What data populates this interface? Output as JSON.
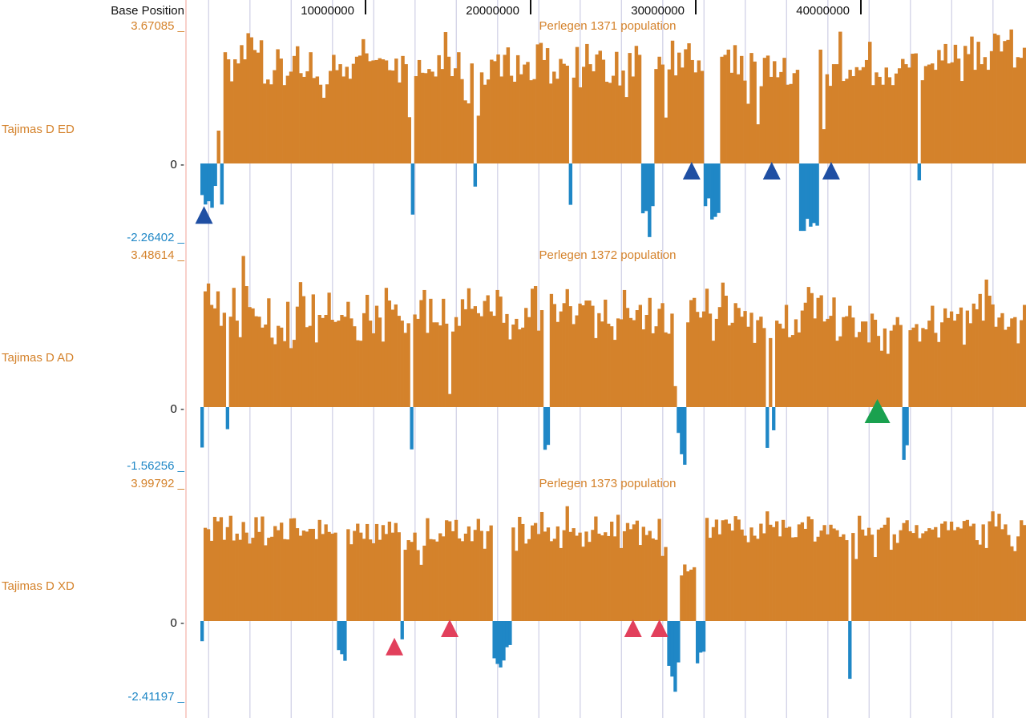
{
  "base_position_label": "Base Position",
  "colors": {
    "positive": "#d4822b",
    "negative": "#1f87c6",
    "gridline": "#d5d5e8",
    "label_orange": "#d4822b",
    "label_blue": "#1f87c6",
    "axis_red": "#f4b0a8",
    "marker_blue": "#1f4fa3",
    "marker_green": "#1aa14f",
    "marker_red": "#e2405c"
  },
  "chart_data": {
    "type": "bar",
    "x_axis": {
      "label": "Base Position",
      "range": [
        0,
        50000000
      ],
      "ticks": [
        10000000,
        20000000,
        30000000,
        40000000
      ],
      "tick_labels": [
        "10000000",
        "20000000",
        "30000000",
        "40000000"
      ]
    },
    "grid": true,
    "tracks": [
      {
        "name": "Tajimas D ED",
        "title": "Perlegen 1371 population",
        "max_label": "3.67085 _",
        "zero_label": "0 -",
        "min_label": "-2.26402 _",
        "ylim": [
          -2.26402,
          3.67085
        ],
        "values": [
          -0.97,
          -1.26,
          -1.16,
          -1.36,
          -0.69,
          0.88,
          -1.26,
          2.98,
          2.79,
          2.2,
          2.79,
          2.68,
          3.17,
          2.79,
          3.49,
          3.38,
          3.04,
          2.97,
          3.3,
          2.14,
          2.25,
          2.12,
          2.5,
          3.06,
          2.81,
          2.1,
          2.35,
          2.46,
          2.88,
          3.14,
          2.42,
          2.32,
          2.47,
          2.98,
          2.29,
          2.33,
          2.11,
          1.76,
          2.12,
          2.48,
          2.91,
          2.5,
          2.66,
          2.33,
          2.59,
          2.27,
          2.67,
          2.86,
          2.89,
          3.33,
          2.95,
          2.74,
          2.76,
          2.77,
          2.82,
          2.79,
          2.76,
          2.5,
          2.49,
          2.81,
          2.17,
          2.88,
          2.66,
          1.24,
          -1.57,
          2.34,
          2.77,
          2.43,
          2.42,
          2.53,
          2.46,
          2.33,
          2.9,
          2.53,
          3.52,
          2.86,
          2.34,
          2.55,
          2.98,
          2.26,
          1.69,
          1.61,
          2.68,
          -0.71,
          1.28,
          2.44,
          2.11,
          2.25,
          2.78,
          2.74,
          2.92,
          2.33,
          2.91,
          3.11,
          2.35,
          2.19,
          2.9,
          2.39,
          2.65,
          2.72,
          2.23,
          2.26,
          3.19,
          3.23,
          2.77,
          3.09,
          2.14,
          2.46,
          2.27,
          2.8,
          2.67,
          2.62,
          -1.27,
          2.3,
          3.12,
          2.04,
          2.59,
          3.2,
          2.66,
          2.47,
          2.92,
          3.02,
          2.78,
          2.19,
          2.16,
          2.35,
          2.99,
          2.09,
          2.49,
          1.78,
          2.96,
          2.33,
          3.15,
          2.91,
          -1.53,
          -1.46,
          -2.26,
          -1.31,
          2.53,
          2.86,
          2.65,
          1.23,
          2.52,
          3.29,
          2.36,
          2.97,
          2.57,
          3.06,
          3.22,
          2.77,
          2.44,
          2.76,
          2.48,
          -1.31,
          -1.07,
          -1.72,
          -1.64,
          -1.52,
          2.86,
          2.91,
          3.05,
          2.43,
          3.17,
          2.39,
          2.88,
          2.22,
          1.6,
          2.96,
          2.73,
          1.05,
          2.07,
          2.83,
          2.89,
          2.32,
          2.74,
          2.31,
          2.45,
          2.83,
          2.11,
          2.13,
          2.42,
          2.51,
          -2.07,
          -2.07,
          -1.7,
          -1.94,
          -1.83,
          -1.91,
          3.05,
          0.92,
          2.39,
          2.08,
          2.66,
          2.66,
          3.53,
          2.21,
          2.27,
          2.51,
          2.34,
          2.58,
          2.5,
          2.58,
          2.77,
          3.26,
          2.1,
          2.44,
          2.32,
          2.11,
          2.57,
          2.31,
          2.1,
          2.41,
          2.55,
          2.8,
          2.66,
          2.57,
          2.94,
          2.95,
          -0.52,
          2.23,
          2.61,
          2.65,
          2.68,
          2.51,
          3.04,
          2.76,
          3.2,
          2.68,
          2.71,
          3.18,
          2.81,
          2.21,
          3.15,
          2.93,
          3.4,
          2.51,
          3.26,
          2.66,
          2.85,
          2.51,
          3.01,
          3.48,
          3.44,
          3.0,
          3.28,
          3.31,
          3.59,
          2.57,
          2.85,
          2.83,
          3.1
        ]
      },
      {
        "name": "Tajimas D AD",
        "title": "Perlegen 1372 population",
        "max_label": "3.48614 _",
        "zero_label": "0 -",
        "min_label": "-1.56256 _",
        "ylim": [
          -1.56256,
          3.48614
        ],
        "values": [
          -1.08,
          2.65,
          2.83,
          2.34,
          2.26,
          2.65,
          1.86,
          2.16,
          -0.59,
          2.07,
          2.73,
          1.98,
          1.6,
          3.46,
          2.77,
          2.29,
          2.26,
          2.08,
          2.07,
          1.82,
          1.89,
          2.49,
          1.59,
          1.44,
          1.86,
          1.82,
          1.51,
          2.41,
          1.35,
          1.54,
          2.3,
          2.86,
          2.54,
          1.83,
          1.86,
          2.58,
          1.48,
          2.11,
          2.04,
          2.11,
          2.62,
          2.0,
          1.95,
          1.98,
          2.11,
          2.07,
          2.41,
          2.03,
          1.85,
          1.53,
          1.52,
          2.15,
          2.57,
          1.98,
          1.69,
          2.32,
          2.05,
          1.5,
          2.73,
          2.44,
          2.23,
          2.35,
          2.09,
          1.98,
          1.7,
          1.92,
          -1.13,
          2.12,
          2.02,
          2.45,
          2.68,
          1.7,
          2.48,
          1.94,
          1.94,
          1.87,
          2.48,
          1.91,
          0.3,
          1.73,
          2.06,
          1.86,
          2.47,
          2.24,
          2.72,
          2.25,
          2.31,
          2.15,
          2.08,
          2.43,
          2.56,
          2.19,
          2.09,
          2.68,
          2.53,
          1.93,
          2.13,
          1.55,
          1.89,
          2.02,
          1.78,
          1.82,
          2.27,
          2.06,
          2.71,
          2.77,
          1.75,
          2.22,
          -1.14,
          -1.01,
          2.59,
          2.36,
          1.95,
          2.19,
          2.38,
          2.7,
          2.31,
          1.9,
          2.1,
          2.37,
          2.33,
          2.44,
          2.44,
          2.32,
          1.58,
          2.15,
          1.96,
          2.46,
          1.91,
          1.85,
          1.54,
          2.03,
          2.01,
          2.68,
          2.27,
          2.04,
          1.99,
          2.22,
          2.34,
          1.78,
          2.11,
          2.5,
          1.69,
          1.85,
          2.25,
          2.38,
          1.71,
          1.68,
          2.14,
          0.48,
          -0.69,
          -1.26,
          -1.54,
          1.94,
          2.45,
          2.5,
          2.18,
          2.05,
          2.19,
          2.71,
          2.14,
          1.52,
          2.02,
          2.29,
          2.85,
          2.55,
          1.87,
          1.93,
          2.38,
          2.27,
          2.07,
          2.2,
          1.84,
          2.16,
          1.47,
          1.99,
          2.07,
          1.81,
          -1.09,
          1.58,
          -0.62,
          1.98,
          1.91,
          1.8,
          2.34,
          1.6,
          1.65,
          2.01,
          1.71,
          2.21,
          2.39,
          2.75,
          2.61,
          2.03,
          2.5,
          2.56,
          1.96,
          2.02,
          2.09,
          2.51,
          1.52,
          1.62,
          2.06,
          2.08,
          2.32,
          2.05,
          1.6,
          1.72,
          1.96,
          1.96,
          1.48,
          2.14,
          2.0,
          1.63,
          1.29,
          1.8,
          1.22,
          1.75,
          1.88,
          2.06,
          1.88,
          -1.41,
          -1.02,
          1.76,
          1.82,
          1.9,
          1.5,
          1.81,
          1.78,
          1.98,
          2.32,
          1.7,
          1.49,
          1.94,
          2.26,
          2.04,
          2.19,
          1.98,
          2.13,
          2.28,
          1.43,
          2.21,
          1.92,
          2.37,
          2.24,
          2.59,
          1.98,
          2.92,
          2.55,
          2.35,
          1.84,
          2.05,
          2.15,
          1.77,
          1.84,
          2.03,
          2.06,
          1.46,
          1.99,
          2.34
        ]
      },
      {
        "name": "Tajimas D XD",
        "title": "Perlegen 1373 population",
        "max_label": "3.99792 _",
        "zero_label": "0 -",
        "min_label": "-2.41197 _",
        "ylim": [
          -2.41197,
          3.99792
        ],
        "values": [
          -0.64,
          2.72,
          2.68,
          2.34,
          3.04,
          2.91,
          3.03,
          2.37,
          2.74,
          3.07,
          2.35,
          2.55,
          2.37,
          2.89,
          2.58,
          2.26,
          2.43,
          3.03,
          2.6,
          3.05,
          2.21,
          2.43,
          2.46,
          2.77,
          2.65,
          2.87,
          2.39,
          2.38,
          2.99,
          3.0,
          2.71,
          2.49,
          2.64,
          2.61,
          2.69,
          2.69,
          2.39,
          2.95,
          2.54,
          2.82,
          2.6,
          2.55,
          2.58,
          -0.92,
          -1.05,
          -1.26,
          2.68,
          2.24,
          2.63,
          2.84,
          2.58,
          2.4,
          2.83,
          2.38,
          2.27,
          2.83,
          2.37,
          2.8,
          2.54,
          2.9,
          2.58,
          2.86,
          2.59,
          -0.58,
          2.08,
          2.36,
          2.31,
          2.58,
          2.07,
          1.64,
          2.2,
          3.0,
          2.39,
          2.38,
          2.32,
          2.56,
          2.47,
          2.94,
          2.91,
          2.62,
          2.95,
          2.41,
          2.33,
          2.55,
          2.76,
          2.33,
          2.66,
          2.98,
          2.63,
          2.11,
          2.62,
          2.79,
          -1.18,
          -1.36,
          -1.47,
          -1.25,
          -0.83,
          -0.76,
          2.73,
          2.05,
          3.04,
          2.83,
          2.26,
          2.39,
          2.79,
          2.86,
          2.54,
          3.18,
          2.61,
          2.73,
          2.33,
          2.4,
          2.76,
          2.13,
          2.65,
          3.35,
          2.6,
          2.71,
          2.49,
          2.58,
          2.17,
          2.61,
          2.31,
          2.66,
          3.05,
          2.55,
          2.5,
          2.59,
          2.48,
          2.9,
          2.47,
          3.1,
          2.13,
          2.62,
          2.86,
          2.68,
          2.82,
          2.93,
          2.22,
          2.75,
          2.51,
          2.63,
          2.41,
          2.37,
          2.98,
          1.9,
          2.16,
          -1.42,
          -1.76,
          -2.24,
          -1.31,
          1.33,
          1.65,
          1.45,
          1.5,
          1.57,
          -1.34,
          -1.0,
          -0.97,
          3.01,
          2.43,
          2.74,
          2.96,
          2.53,
          2.94,
          2.96,
          2.84,
          2.64,
          3.06,
          2.96,
          2.67,
          2.49,
          2.3,
          2.73,
          2.49,
          2.4,
          2.84,
          2.56,
          3.2,
          2.81,
          2.74,
          2.91,
          2.47,
          2.95,
          2.72,
          2.75,
          2.44,
          2.45,
          2.82,
          2.88,
          2.69,
          3.05,
          2.97,
          2.32,
          2.46,
          2.64,
          2.8,
          2.53,
          2.81,
          2.7,
          2.65,
          2.46,
          2.53,
          2.36,
          -1.83,
          2.57,
          1.81,
          3.07,
          2.67,
          2.49,
          2.72,
          2.52,
          1.87,
          2.67,
          2.72,
          2.81,
          3.02,
          2.08,
          2.53,
          2.28,
          2.65,
          2.86,
          2.94,
          2.62,
          2.57,
          2.8,
          2.42,
          2.56,
          2.62,
          2.71,
          2.67,
          2.74,
          2.44,
          2.84,
          2.91,
          2.65,
          2.9,
          2.65,
          2.74,
          2.7,
          2.92,
          2.95,
          2.77,
          2.84,
          2.36,
          2.23,
          2.82,
          2.13,
          2.91,
          3.2,
          2.76,
          3.13,
          2.68,
          2.82,
          2.51,
          2.18,
          2.04,
          2.47,
          2.94,
          2.8
        ]
      }
    ],
    "markers": [
      {
        "position": 220000,
        "track": 0,
        "color": "#1f4fa3"
      },
      {
        "position": 29750000,
        "track": 0,
        "color": "#1f4fa3"
      },
      {
        "position": 34600000,
        "track": 0,
        "color": "#1f4fa3"
      },
      {
        "position": 38200000,
        "track": 0,
        "color": "#1f4fa3"
      },
      {
        "position": 41000000,
        "track": 1,
        "color": "#1aa14f"
      },
      {
        "position": 11750000,
        "track": 2,
        "color": "#e2405c"
      },
      {
        "position": 15100000,
        "track": 2,
        "color": "#e2405c"
      },
      {
        "position": 26200000,
        "track": 2,
        "color": "#e2405c"
      },
      {
        "position": 27800000,
        "track": 2,
        "color": "#e2405c"
      }
    ]
  }
}
